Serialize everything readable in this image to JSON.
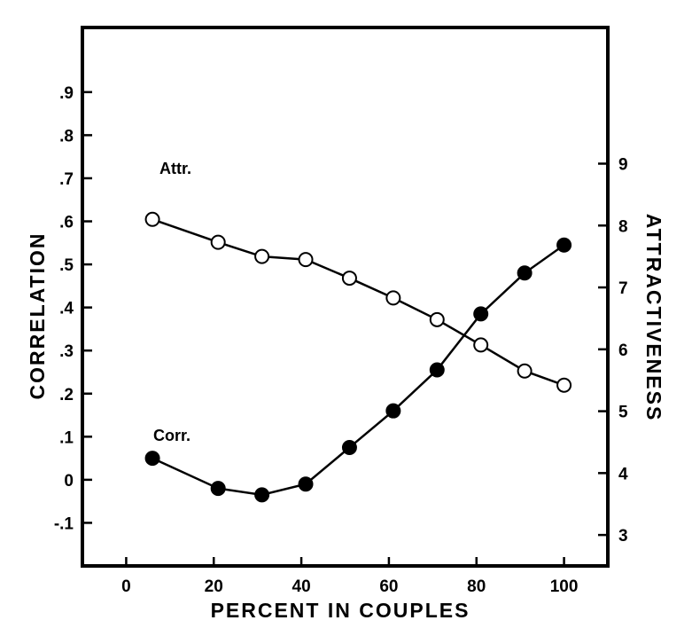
{
  "chart_data": {
    "type": "line",
    "title": "",
    "xlabel": "PERCENT IN COUPLES",
    "ylabel_left": "CORRELATION",
    "ylabel_right": "ATTRACTIVENESS",
    "xlim": [
      -10,
      110
    ],
    "ylim_left": [
      -0.2,
      1.05
    ],
    "ylim_right": [
      2.5,
      11.2
    ],
    "x_ticks": [
      0,
      20,
      40,
      60,
      80,
      100
    ],
    "x_tick_labels": [
      "0",
      "20",
      "40",
      "60",
      "80",
      "100"
    ],
    "y_left_ticks": [
      -0.1,
      0,
      0.1,
      0.2,
      0.3,
      0.4,
      0.5,
      0.6,
      0.7,
      0.8,
      0.9
    ],
    "y_left_tick_labels": [
      "-.1",
      "0",
      ".1",
      ".2",
      ".3",
      ".4",
      ".5",
      ".6",
      ".7",
      ".8",
      ".9"
    ],
    "y_right_ticks": [
      3,
      4,
      5,
      6,
      7,
      8,
      9
    ],
    "y_right_tick_labels": [
      "3",
      "4",
      "5",
      "6",
      "7",
      "8",
      "9"
    ],
    "grid": false,
    "series": [
      {
        "name": "Attr.",
        "axis": "right",
        "marker": "open-circle",
        "x": [
          6,
          21,
          31,
          41,
          51,
          61,
          71,
          81,
          91,
          100
        ],
        "y": [
          8.1,
          7.73,
          7.5,
          7.45,
          7.15,
          6.83,
          6.48,
          6.07,
          5.65,
          5.42
        ]
      },
      {
        "name": "Corr.",
        "axis": "left",
        "marker": "filled-circle",
        "x": [
          6,
          21,
          31,
          41,
          51,
          61,
          71,
          81,
          91,
          100
        ],
        "y": [
          0.05,
          -0.02,
          -0.035,
          -0.01,
          0.075,
          0.16,
          0.255,
          0.385,
          0.48,
          0.545
        ]
      }
    ]
  }
}
